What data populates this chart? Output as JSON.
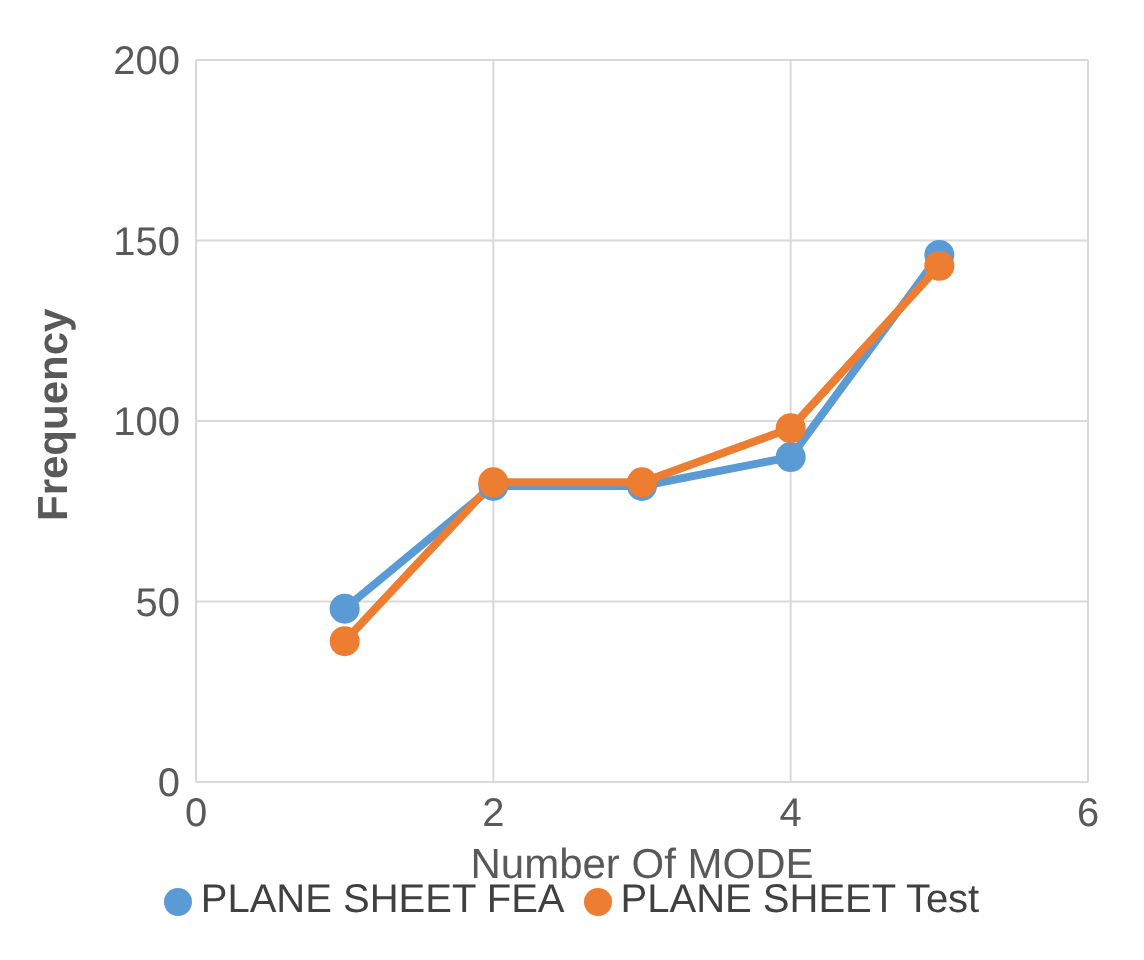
{
  "chart_data": {
    "type": "line",
    "xlabel": "Number Of MODE",
    "ylabel": "Frequency",
    "x": [
      1,
      2,
      3,
      4,
      5
    ],
    "series": [
      {
        "name": "PLANE SHEET FEA",
        "color": "#5b9bd5",
        "values": [
          48,
          82,
          82,
          90,
          146
        ]
      },
      {
        "name": "PLANE SHEET Test",
        "color": "#ed7d31",
        "values": [
          39,
          83,
          83,
          98,
          143
        ]
      }
    ],
    "xlim": [
      0,
      6
    ],
    "xticks": [
      0,
      2,
      4,
      6
    ],
    "ylim": [
      0,
      200
    ],
    "yticks": [
      0,
      50,
      100,
      150,
      200
    ],
    "grid": true,
    "legend": "bottom",
    "marker": "circle",
    "line_style": "solid"
  }
}
